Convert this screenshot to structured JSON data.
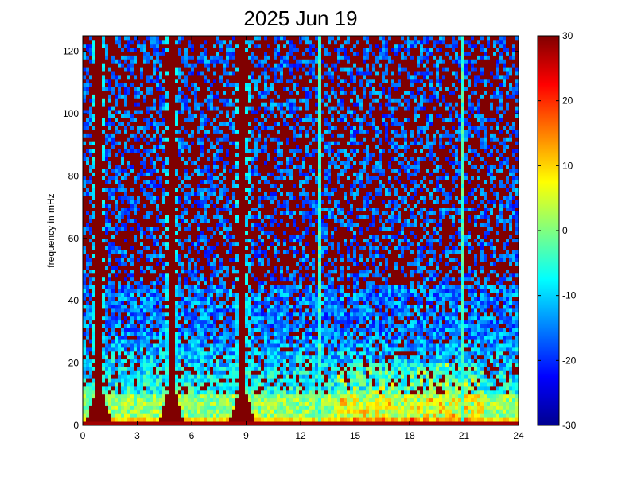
{
  "chart_data": {
    "type": "heatmap",
    "title": "2025 Jun 19",
    "xlabel": "",
    "ylabel": "frequency in mHz",
    "xlim": [
      0,
      24
    ],
    "ylim": [
      0,
      125
    ],
    "x_ticks": [
      0,
      3,
      6,
      9,
      12,
      15,
      18,
      21,
      24
    ],
    "y_ticks": [
      0,
      20,
      40,
      60,
      80,
      100,
      120
    ],
    "colorbar": {
      "range": [
        -30,
        30
      ],
      "ticks": [
        -30,
        -20,
        -10,
        0,
        10,
        20,
        30
      ],
      "colormap": "jet"
    },
    "grid": false,
    "features": {
      "saturated_bursts_hours": [
        0.6,
        1.2,
        4.7,
        5.1,
        8.6,
        9.0
      ],
      "thin_vertical_streaks_hours": [
        13.1,
        20.9
      ],
      "high_frequency_background": "saturated (~30) above ~50 mHz, mixed with blue (~-20)",
      "low_frequency_floor": "cyan/green (~-10 to 5), yellow-orange near 15-21 h below ~25 mHz"
    }
  },
  "colors": {
    "axes_line": "#000000",
    "background": "#ffffff",
    "colormap_low": "#00008f",
    "colormap_high": "#800000"
  }
}
